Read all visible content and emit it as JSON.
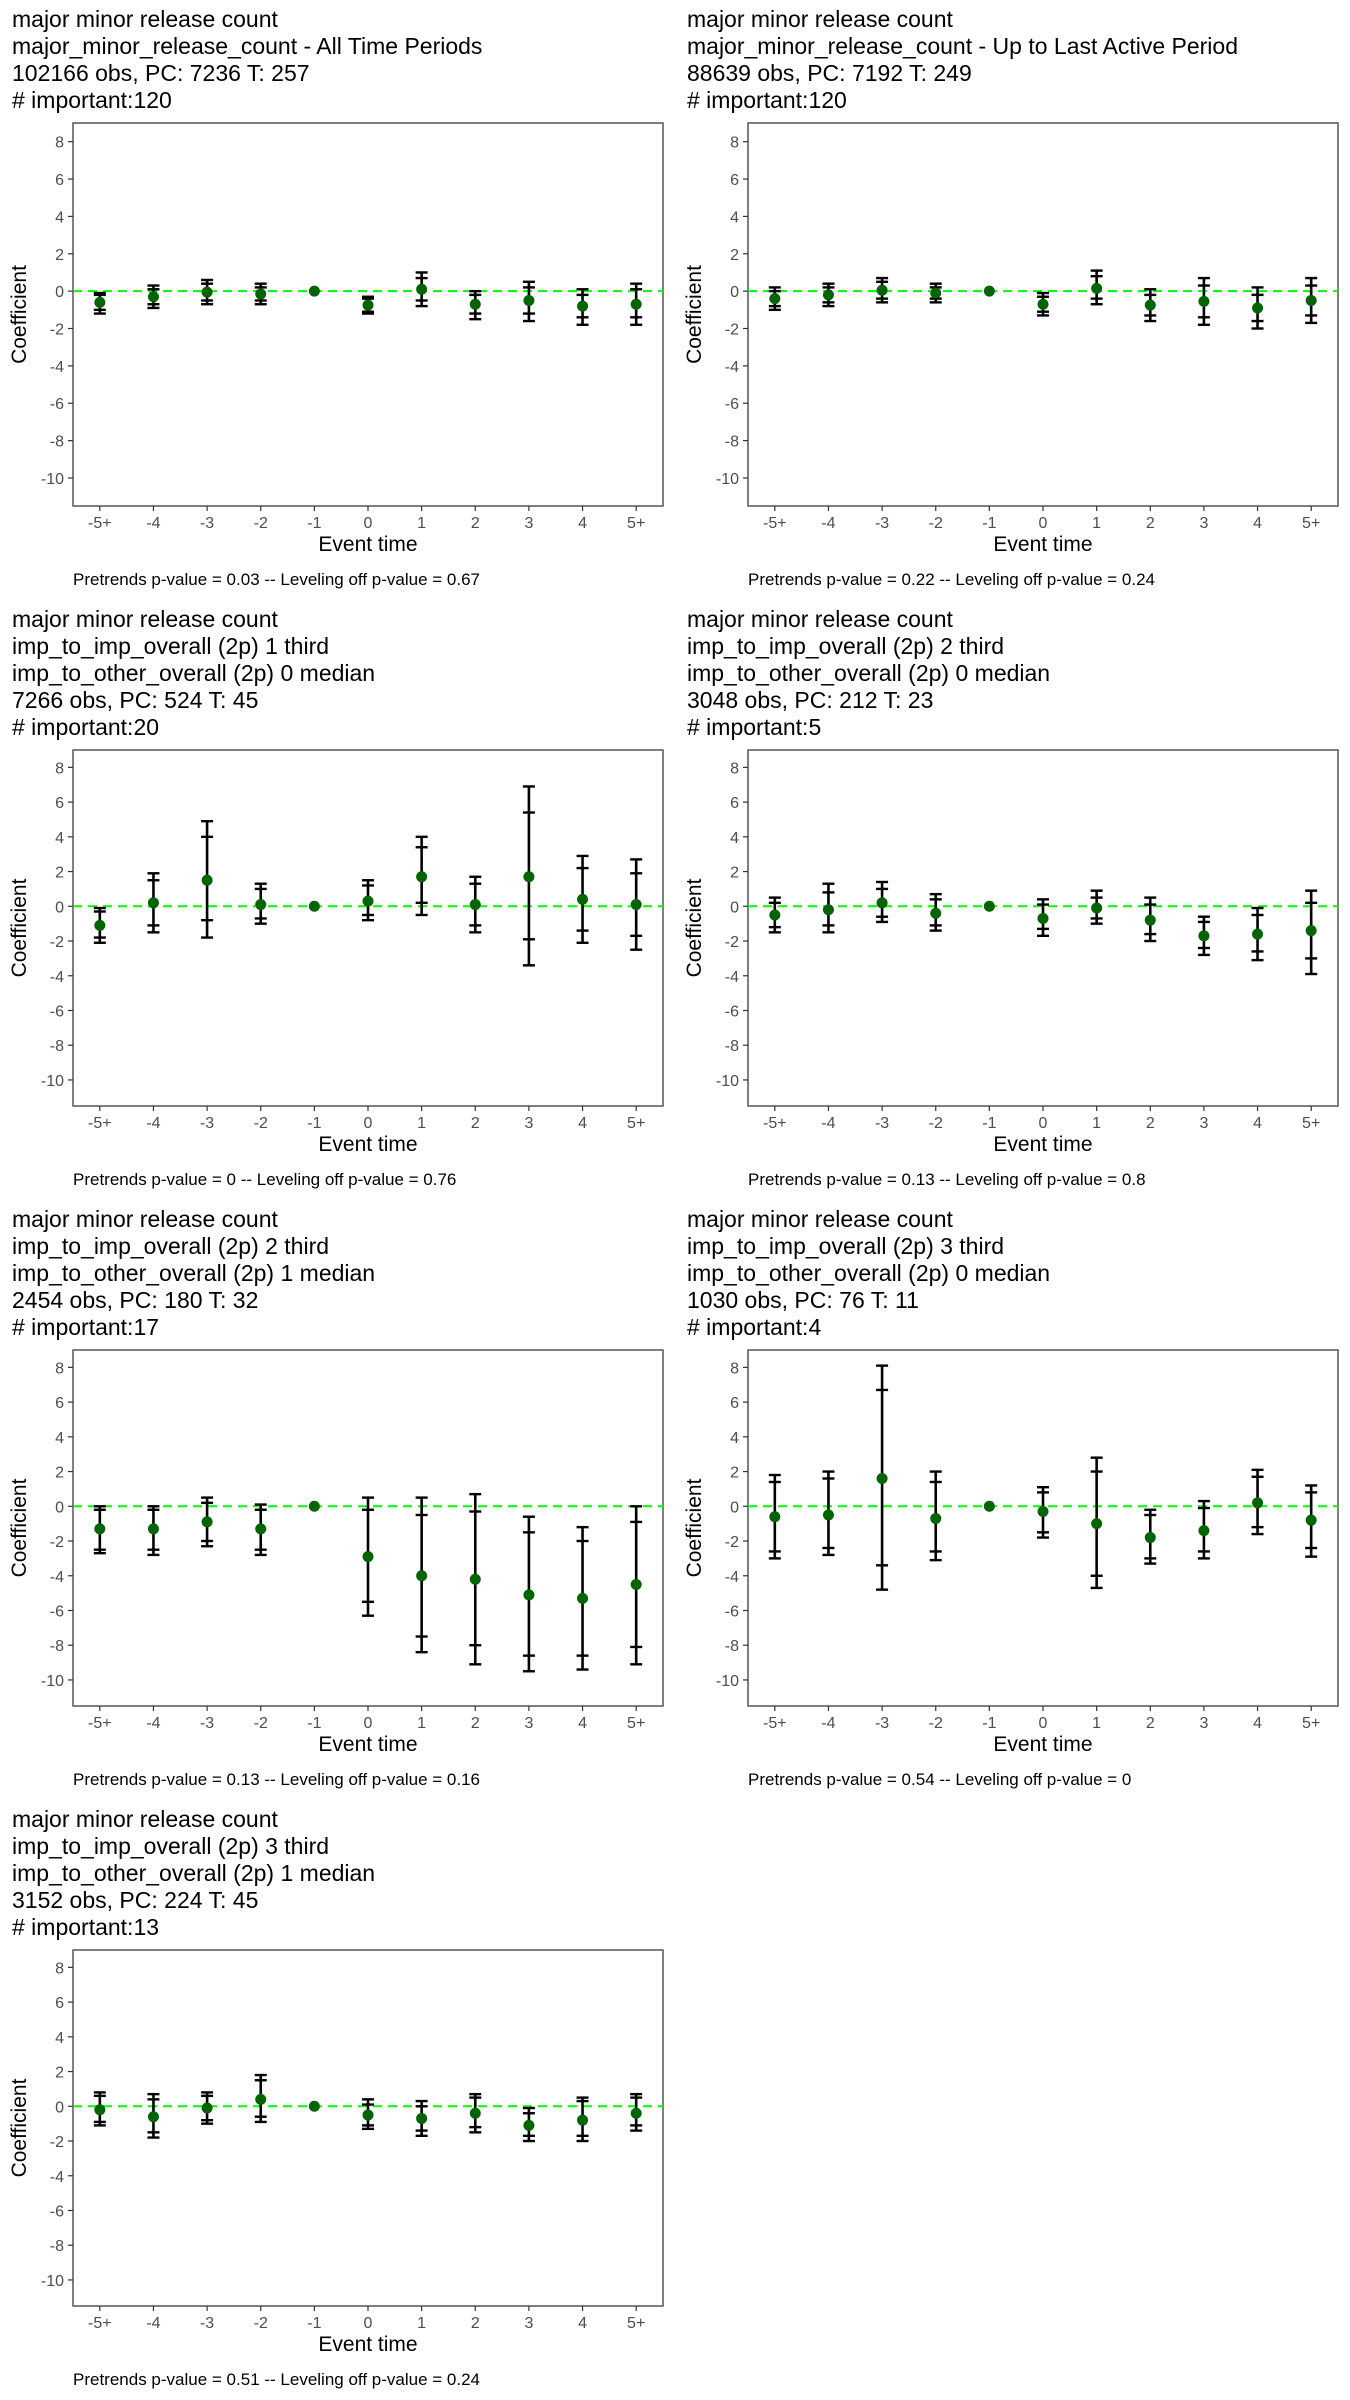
{
  "common": {
    "ylabel": "Coefficient",
    "xlabel": "Event time",
    "xticks": [
      "-5+",
      "-4",
      "-3",
      "-2",
      "-1",
      "0",
      "1",
      "2",
      "3",
      "4",
      "5+"
    ],
    "yticks": [
      8,
      6,
      4,
      2,
      0,
      -2,
      -4,
      -6,
      -8,
      -10
    ],
    "ylim": [
      -11.5,
      9
    ],
    "colors": {
      "point": "#006400",
      "zero_line": "#00ff00",
      "bars": "#000000",
      "panel_border": "#555555"
    }
  },
  "chart_data": [
    {
      "type": "scatter",
      "title_lines": [
        "major minor release count",
        "major_minor_release_count - All Time Periods",
        "102166 obs, PC: 7236 T: 257",
        "# important:120"
      ],
      "note": "Pretrends p-value = 0.03 -- Leveling off p-value = 0.67",
      "x": [
        "-5+",
        "-4",
        "-3",
        "-2",
        "-1",
        "0",
        "1",
        "2",
        "3",
        "4",
        "5+"
      ],
      "y": [
        -0.6,
        -0.3,
        -0.05,
        -0.15,
        0,
        -0.75,
        0.1,
        -0.7,
        -0.5,
        -0.8,
        -0.7
      ],
      "ci_inner": [
        [
          -1.0,
          -0.2
        ],
        [
          -0.7,
          0.1
        ],
        [
          -0.5,
          0.4
        ],
        [
          -0.5,
          0.2
        ],
        [
          0,
          0
        ],
        [
          -1.1,
          -0.4
        ],
        [
          -0.5,
          0.7
        ],
        [
          -1.2,
          -0.2
        ],
        [
          -1.2,
          0.2
        ],
        [
          -1.4,
          -0.2
        ],
        [
          -1.4,
          0.1
        ]
      ],
      "ci_outer": [
        [
          -1.2,
          -0.1
        ],
        [
          -0.9,
          0.3
        ],
        [
          -0.7,
          0.6
        ],
        [
          -0.7,
          0.4
        ],
        [
          0,
          0
        ],
        [
          -1.2,
          -0.3
        ],
        [
          -0.8,
          1.0
        ],
        [
          -1.5,
          0.0
        ],
        [
          -1.6,
          0.5
        ],
        [
          -1.8,
          0.1
        ],
        [
          -1.8,
          0.4
        ]
      ]
    },
    {
      "type": "scatter",
      "title_lines": [
        "major minor release count",
        "major_minor_release_count - Up to Last Active Period",
        "88639 obs, PC: 7192 T: 249",
        "# important:120"
      ],
      "note": "Pretrends p-value = 0.22 -- Leveling off p-value = 0.24",
      "x": [
        "-5+",
        "-4",
        "-3",
        "-2",
        "-1",
        "0",
        "1",
        "2",
        "3",
        "4",
        "5+"
      ],
      "y": [
        -0.4,
        -0.2,
        0.05,
        -0.1,
        0,
        -0.7,
        0.15,
        -0.75,
        -0.55,
        -0.9,
        -0.5
      ],
      "ci_inner": [
        [
          -0.8,
          0.0
        ],
        [
          -0.6,
          0.2
        ],
        [
          -0.4,
          0.5
        ],
        [
          -0.4,
          0.2
        ],
        [
          0,
          0
        ],
        [
          -1.1,
          -0.3
        ],
        [
          -0.4,
          0.8
        ],
        [
          -1.3,
          -0.2
        ],
        [
          -1.4,
          0.3
        ],
        [
          -1.6,
          -0.2
        ],
        [
          -1.3,
          0.3
        ]
      ],
      "ci_outer": [
        [
          -1.0,
          0.2
        ],
        [
          -0.8,
          0.4
        ],
        [
          -0.6,
          0.7
        ],
        [
          -0.6,
          0.4
        ],
        [
          0,
          0
        ],
        [
          -1.3,
          -0.1
        ],
        [
          -0.7,
          1.1
        ],
        [
          -1.6,
          0.1
        ],
        [
          -1.8,
          0.7
        ],
        [
          -2.0,
          0.2
        ],
        [
          -1.7,
          0.7
        ]
      ]
    },
    {
      "type": "scatter",
      "title_lines": [
        "major minor release count",
        "imp_to_imp_overall (2p) 1 third",
        "imp_to_other_overall (2p) 0 median",
        "7266 obs, PC: 524 T: 45",
        "# important:20"
      ],
      "note": "Pretrends p-value = 0 -- Leveling off p-value = 0.76",
      "x": [
        "-5+",
        "-4",
        "-3",
        "-2",
        "-1",
        "0",
        "1",
        "2",
        "3",
        "4",
        "5+"
      ],
      "y": [
        -1.1,
        0.2,
        1.5,
        0.1,
        0,
        0.3,
        1.7,
        0.1,
        1.7,
        0.4,
        0.1
      ],
      "ci_inner": [
        [
          -1.8,
          -0.3
        ],
        [
          -1.1,
          1.5
        ],
        [
          -0.8,
          4.0
        ],
        [
          -0.7,
          1.0
        ],
        [
          0,
          0
        ],
        [
          -0.5,
          1.2
        ],
        [
          0.2,
          3.4
        ],
        [
          -1.1,
          1.3
        ],
        [
          -1.9,
          5.4
        ],
        [
          -1.4,
          2.2
        ],
        [
          -1.7,
          1.9
        ]
      ],
      "ci_outer": [
        [
          -2.1,
          -0.1
        ],
        [
          -1.5,
          1.9
        ],
        [
          -1.8,
          4.9
        ],
        [
          -1.0,
          1.3
        ],
        [
          0,
          0
        ],
        [
          -0.8,
          1.5
        ],
        [
          -0.5,
          4.0
        ],
        [
          -1.5,
          1.7
        ],
        [
          -3.4,
          6.9
        ],
        [
          -2.1,
          2.9
        ],
        [
          -2.5,
          2.7
        ]
      ]
    },
    {
      "type": "scatter",
      "title_lines": [
        "major minor release count",
        "imp_to_imp_overall (2p) 2 third",
        "imp_to_other_overall (2p) 0 median",
        "3048 obs, PC: 212 T: 23",
        "# important:5"
      ],
      "note": "Pretrends p-value = 0.13 -- Leveling off p-value = 0.8",
      "x": [
        "-5+",
        "-4",
        "-3",
        "-2",
        "-1",
        "0",
        "1",
        "2",
        "3",
        "4",
        "5+"
      ],
      "y": [
        -0.5,
        -0.2,
        0.2,
        -0.4,
        0,
        -0.7,
        -0.1,
        -0.8,
        -1.7,
        -1.6,
        -1.4
      ],
      "ci_inner": [
        [
          -1.2,
          0.2
        ],
        [
          -1.1,
          0.8
        ],
        [
          -0.6,
          1.0
        ],
        [
          -1.1,
          0.4
        ],
        [
          0,
          0
        ],
        [
          -1.3,
          0.1
        ],
        [
          -0.7,
          0.5
        ],
        [
          -1.6,
          0.1
        ],
        [
          -2.4,
          -0.9
        ],
        [
          -2.6,
          -0.5
        ],
        [
          -3.0,
          0.2
        ]
      ],
      "ci_outer": [
        [
          -1.5,
          0.5
        ],
        [
          -1.5,
          1.3
        ],
        [
          -0.9,
          1.4
        ],
        [
          -1.4,
          0.7
        ],
        [
          0,
          0
        ],
        [
          -1.7,
          0.4
        ],
        [
          -1.0,
          0.9
        ],
        [
          -2.0,
          0.5
        ],
        [
          -2.8,
          -0.6
        ],
        [
          -3.1,
          -0.1
        ],
        [
          -3.9,
          0.9
        ]
      ]
    },
    {
      "type": "scatter",
      "title_lines": [
        "major minor release count",
        "imp_to_imp_overall (2p) 2 third",
        "imp_to_other_overall (2p) 1 median",
        "2454 obs, PC: 180 T: 32",
        "# important:17"
      ],
      "note": "Pretrends p-value = 0.13 -- Leveling off p-value = 0.16",
      "x": [
        "-5+",
        "-4",
        "-3",
        "-2",
        "-1",
        "0",
        "1",
        "2",
        "3",
        "4",
        "5+"
      ],
      "y": [
        -1.3,
        -1.3,
        -0.9,
        -1.3,
        0,
        -2.9,
        -4.0,
        -4.2,
        -5.1,
        -5.3,
        -4.5
      ],
      "ci_inner": [
        [
          -2.5,
          -0.2
        ],
        [
          -2.5,
          -0.2
        ],
        [
          -2.0,
          0.2
        ],
        [
          -2.5,
          -0.2
        ],
        [
          0,
          0
        ],
        [
          -5.5,
          -0.2
        ],
        [
          -7.5,
          -0.5
        ],
        [
          -8.0,
          -0.3
        ],
        [
          -8.6,
          -1.5
        ],
        [
          -8.6,
          -2.0
        ],
        [
          -8.1,
          -0.9
        ]
      ],
      "ci_outer": [
        [
          -2.7,
          0.0
        ],
        [
          -2.8,
          0.0
        ],
        [
          -2.3,
          0.5
        ],
        [
          -2.8,
          0.1
        ],
        [
          0,
          0
        ],
        [
          -6.3,
          0.5
        ],
        [
          -8.4,
          0.5
        ],
        [
          -9.1,
          0.7
        ],
        [
          -9.5,
          -0.6
        ],
        [
          -9.4,
          -1.2
        ],
        [
          -9.1,
          0.0
        ]
      ]
    },
    {
      "type": "scatter",
      "title_lines": [
        "major minor release count",
        "imp_to_imp_overall (2p) 3 third",
        "imp_to_other_overall (2p) 0 median",
        "1030 obs, PC: 76 T: 11",
        "# important:4"
      ],
      "note": "Pretrends p-value = 0.54 -- Leveling off p-value = 0",
      "x": [
        "-5+",
        "-4",
        "-3",
        "-2",
        "-1",
        "0",
        "1",
        "2",
        "3",
        "4",
        "5+"
      ],
      "y": [
        -0.6,
        -0.5,
        1.6,
        -0.7,
        0,
        -0.3,
        -1.0,
        -1.8,
        -1.4,
        0.2,
        -0.8
      ],
      "ci_inner": [
        [
          -2.6,
          1.4
        ],
        [
          -2.4,
          1.6
        ],
        [
          -3.4,
          6.7
        ],
        [
          -2.6,
          1.4
        ],
        [
          0,
          0
        ],
        [
          -1.5,
          0.8
        ],
        [
          -4.0,
          2.0
        ],
        [
          -3.0,
          -0.5
        ],
        [
          -2.6,
          -0.1
        ],
        [
          -1.2,
          1.7
        ],
        [
          -2.4,
          0.8
        ]
      ],
      "ci_outer": [
        [
          -3.0,
          1.8
        ],
        [
          -2.8,
          2.0
        ],
        [
          -4.8,
          8.1
        ],
        [
          -3.1,
          2.0
        ],
        [
          0,
          0
        ],
        [
          -1.8,
          1.1
        ],
        [
          -4.7,
          2.8
        ],
        [
          -3.3,
          -0.2
        ],
        [
          -3.0,
          0.3
        ],
        [
          -1.6,
          2.1
        ],
        [
          -2.9,
          1.2
        ]
      ]
    },
    {
      "type": "scatter",
      "title_lines": [
        "major minor release count",
        "imp_to_imp_overall (2p) 3 third",
        "imp_to_other_overall (2p) 1 median",
        "3152 obs, PC: 224 T: 45",
        "# important:13"
      ],
      "note": "Pretrends p-value = 0.51 -- Leveling off p-value = 0.24",
      "x": [
        "-5+",
        "-4",
        "-3",
        "-2",
        "-1",
        "0",
        "1",
        "2",
        "3",
        "4",
        "5+"
      ],
      "y": [
        -0.2,
        -0.6,
        -0.1,
        0.4,
        0,
        -0.5,
        -0.7,
        -0.4,
        -1.1,
        -0.8,
        -0.4
      ],
      "ci_inner": [
        [
          -0.9,
          0.6
        ],
        [
          -1.5,
          0.4
        ],
        [
          -0.8,
          0.6
        ],
        [
          -0.6,
          1.5
        ],
        [
          0,
          0
        ],
        [
          -1.1,
          0.1
        ],
        [
          -1.4,
          0.0
        ],
        [
          -1.2,
          0.5
        ],
        [
          -1.7,
          -0.4
        ],
        [
          -1.7,
          0.3
        ],
        [
          -1.1,
          0.5
        ]
      ],
      "ci_outer": [
        [
          -1.1,
          0.8
        ],
        [
          -1.8,
          0.7
        ],
        [
          -1.0,
          0.8
        ],
        [
          -0.9,
          1.8
        ],
        [
          0,
          0
        ],
        [
          -1.3,
          0.4
        ],
        [
          -1.7,
          0.3
        ],
        [
          -1.5,
          0.7
        ],
        [
          -2.0,
          -0.1
        ],
        [
          -2.0,
          0.5
        ],
        [
          -1.4,
          0.7
        ]
      ]
    }
  ]
}
